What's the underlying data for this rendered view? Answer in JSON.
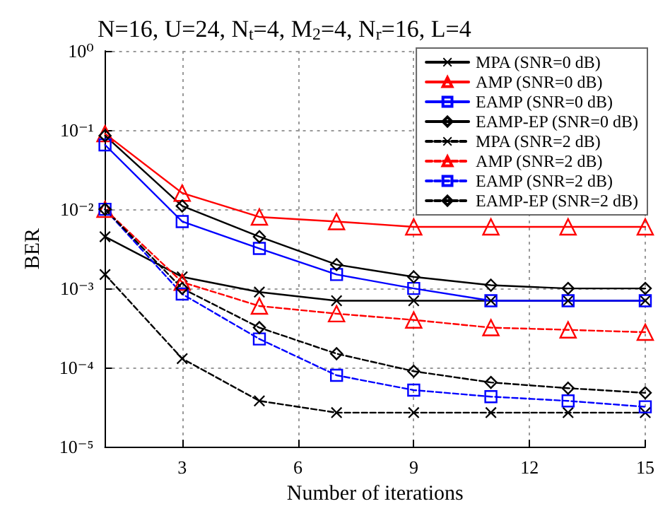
{
  "chart_data": {
    "type": "line",
    "title": "N=16, U=24, N$_{t}$=4, M$_{2}$=4, N$_{r}$=16, L=4",
    "xlabel": "Number of iterations",
    "ylabel": "BER",
    "x": [
      1,
      3,
      5,
      7,
      9,
      11,
      13,
      15
    ],
    "series": [
      {
        "name": "MPA (SNR=0 dB)",
        "color": "#000000",
        "marker": "cross",
        "line_style": "solid",
        "values": [
          0.0045,
          0.0014,
          0.0009,
          0.0007,
          0.0007,
          0.0007,
          0.0007,
          0.0007
        ]
      },
      {
        "name": "AMP (SNR=0 dB)",
        "color": "#ff0000",
        "marker": "triangle",
        "line_style": "solid",
        "values": [
          0.09,
          0.016,
          0.008,
          0.007,
          0.006,
          0.006,
          0.006,
          0.006
        ]
      },
      {
        "name": "EAMP (SNR=0 dB)",
        "color": "#0000ff",
        "marker": "square",
        "line_style": "solid",
        "values": [
          0.065,
          0.007,
          0.0032,
          0.0015,
          0.001,
          0.0007,
          0.0007,
          0.0007
        ]
      },
      {
        "name": "EAMP-EP (SNR=0 dB)",
        "color": "#000000",
        "marker": "diamond",
        "line_style": "solid",
        "values": [
          0.085,
          0.011,
          0.0045,
          0.002,
          0.0014,
          0.0011,
          0.001,
          0.001
        ]
      },
      {
        "name": "MPA (SNR=2 dB)",
        "color": "#000000",
        "marker": "cross",
        "line_style": "dashed",
        "values": [
          0.0015,
          0.00013,
          3.8e-05,
          2.7e-05,
          2.7e-05,
          2.7e-05,
          2.7e-05,
          2.7e-05
        ]
      },
      {
        "name": "AMP (SNR=2 dB)",
        "color": "#ff0000",
        "marker": "triangle",
        "line_style": "dashed",
        "values": [
          0.01,
          0.0012,
          0.0006,
          0.00048,
          0.0004,
          0.00032,
          0.0003,
          0.00028
        ]
      },
      {
        "name": "EAMP (SNR=2 dB)",
        "color": "#0000ff",
        "marker": "square",
        "line_style": "dashed",
        "values": [
          0.01,
          0.00085,
          0.00023,
          8e-05,
          5.2e-05,
          4.3e-05,
          3.8e-05,
          3.2e-05
        ]
      },
      {
        "name": "EAMP-EP (SNR=2 dB)",
        "color": "#000000",
        "marker": "diamond",
        "line_style": "dashed",
        "values": [
          0.01,
          0.001,
          0.00032,
          0.00015,
          9e-05,
          6.5e-05,
          5.5e-05,
          4.8e-05
        ]
      }
    ],
    "xlim": [
      1,
      15
    ],
    "xticks": [
      3,
      6,
      9,
      12,
      15
    ],
    "log": true,
    "ylim": [
      1e-05,
      1
    ],
    "yticks": [
      {
        "value": 1e-05,
        "label": "10⁻⁵"
      },
      {
        "value": 0.0001,
        "label": "10⁻⁴"
      },
      {
        "value": 0.001,
        "label": "10⁻³"
      },
      {
        "value": 0.01,
        "label": "10⁻²"
      },
      {
        "value": 0.1,
        "label": "10⁻¹"
      },
      {
        "value": 1,
        "label": "10⁰"
      }
    ],
    "grid": true,
    "legend": "top right"
  }
}
